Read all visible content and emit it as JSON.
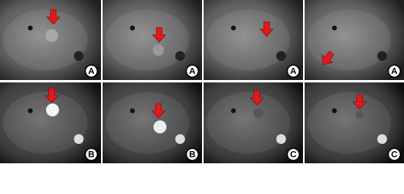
{
  "panels": [
    {
      "label": "A"
    },
    {
      "label": "A"
    },
    {
      "label": "A"
    },
    {
      "label": "A"
    },
    {
      "label": "B"
    },
    {
      "label": "B"
    },
    {
      "label": "C"
    },
    {
      "label": "C"
    }
  ]
}
